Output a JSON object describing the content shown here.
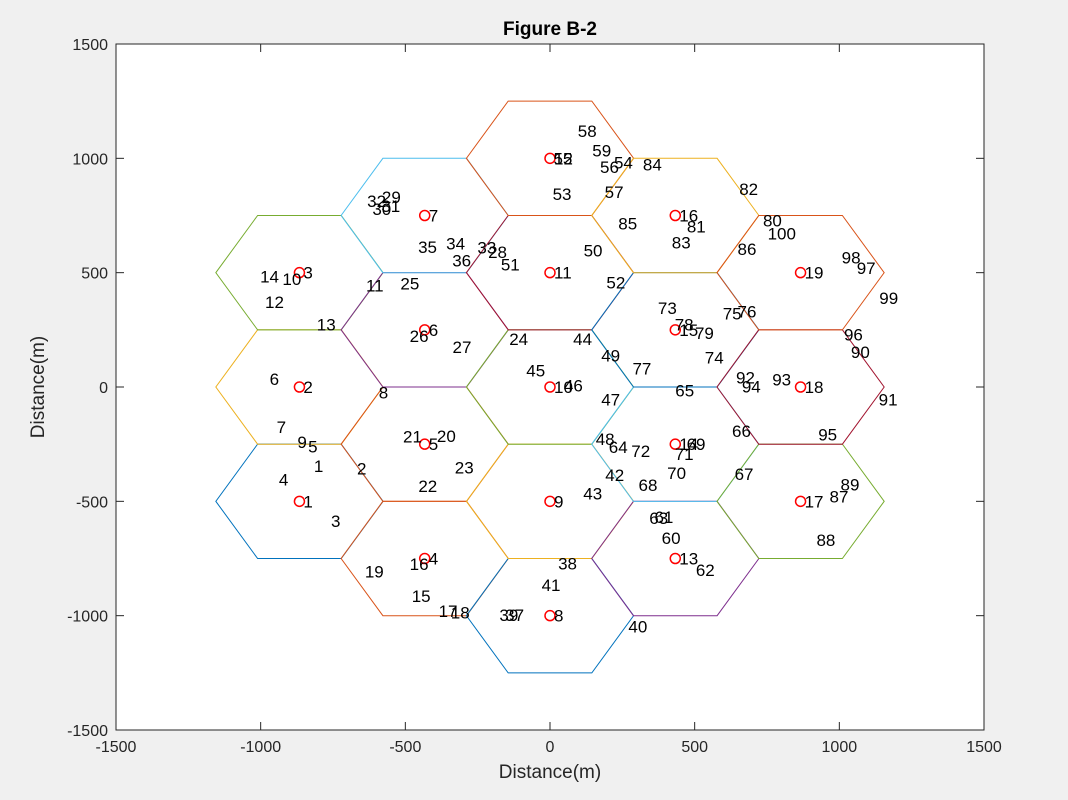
{
  "chart_data": {
    "type": "scatter",
    "title": "Figure B-2",
    "xlabel": "Distance(m)",
    "ylabel": "Distance(m)",
    "xlim": [
      -1500,
      1500
    ],
    "ylim": [
      -1500,
      1500
    ],
    "xticks": [
      -1500,
      -1000,
      -500,
      0,
      500,
      1000,
      1500
    ],
    "yticks": [
      -1500,
      -1000,
      -500,
      0,
      500,
      1000,
      1500
    ],
    "grid": false,
    "hexagon_radius": 289,
    "cells": [
      {
        "x": -866,
        "y": -500,
        "color": "#0072bd"
      },
      {
        "x": -866,
        "y": 0,
        "color": "#edb120"
      },
      {
        "x": -866,
        "y": 500,
        "color": "#77ac30"
      },
      {
        "x": -433,
        "y": -750,
        "color": "#d95319"
      },
      {
        "x": -433,
        "y": -250,
        "color": "#d95319"
      },
      {
        "x": -433,
        "y": 250,
        "color": "#7e2f8e"
      },
      {
        "x": -433,
        "y": 750,
        "color": "#4dbeee"
      },
      {
        "x": 0,
        "y": -1000,
        "color": "#0072bd"
      },
      {
        "x": 0,
        "y": -500,
        "color": "#edb120"
      },
      {
        "x": 0,
        "y": 0,
        "color": "#77ac30"
      },
      {
        "x": 0,
        "y": 500,
        "color": "#a2142f"
      },
      {
        "x": 0,
        "y": 1000,
        "color": "#d95319"
      },
      {
        "x": 433,
        "y": -750,
        "color": "#7e2f8e"
      },
      {
        "x": 433,
        "y": -250,
        "color": "#4dbeee"
      },
      {
        "x": 433,
        "y": 250,
        "color": "#0072bd"
      },
      {
        "x": 433,
        "y": 750,
        "color": "#edb120"
      },
      {
        "x": 866,
        "y": -500,
        "color": "#77ac30"
      },
      {
        "x": 866,
        "y": 0,
        "color": "#a2142f"
      },
      {
        "x": 866,
        "y": 500,
        "color": "#d95319"
      }
    ],
    "base_stations": [
      {
        "label": "1",
        "x": -866,
        "y": -500
      },
      {
        "label": "2",
        "x": -866,
        "y": 0
      },
      {
        "label": "3",
        "x": -866,
        "y": 500
      },
      {
        "label": "4",
        "x": -433,
        "y": -750
      },
      {
        "label": "5",
        "x": -433,
        "y": -250
      },
      {
        "label": "6",
        "x": -433,
        "y": 250
      },
      {
        "label": "7",
        "x": -433,
        "y": 750
      },
      {
        "label": "8",
        "x": 0,
        "y": -1000
      },
      {
        "label": "9",
        "x": 0,
        "y": -500
      },
      {
        "label": "10",
        "x": 0,
        "y": 0
      },
      {
        "label": "11",
        "x": 0,
        "y": 500
      },
      {
        "label": "12",
        "x": 0,
        "y": 1000
      },
      {
        "label": "13",
        "x": 433,
        "y": -750
      },
      {
        "label": "14",
        "x": 433,
        "y": -250
      },
      {
        "label": "15",
        "x": 433,
        "y": 250
      },
      {
        "label": "16",
        "x": 433,
        "y": 750
      },
      {
        "label": "17",
        "x": 866,
        "y": -500
      },
      {
        "label": "18",
        "x": 866,
        "y": 0
      },
      {
        "label": "19",
        "x": 866,
        "y": 500
      }
    ],
    "users": [
      {
        "label": "1",
        "x": -816,
        "y": -346
      },
      {
        "label": "2",
        "x": -667,
        "y": -356
      },
      {
        "label": "3",
        "x": -757,
        "y": -587
      },
      {
        "label": "4",
        "x": -937,
        "y": -405
      },
      {
        "label": "5",
        "x": -836,
        "y": -261
      },
      {
        "label": "6",
        "x": -969,
        "y": 35
      },
      {
        "label": "7",
        "x": -945,
        "y": -175
      },
      {
        "label": "8",
        "x": -592,
        "y": -24
      },
      {
        "label": "9",
        "x": -873,
        "y": -240
      },
      {
        "label": "10",
        "x": -925,
        "y": 473
      },
      {
        "label": "11",
        "x": -636,
        "y": 444
      },
      {
        "label": "12",
        "x": -985,
        "y": 372
      },
      {
        "label": "13",
        "x": -806,
        "y": 273
      },
      {
        "label": "14",
        "x": -1002,
        "y": 483
      },
      {
        "label": "15",
        "x": -478,
        "y": -914
      },
      {
        "label": "16",
        "x": -485,
        "y": -774
      },
      {
        "label": "17",
        "x": -385,
        "y": -979
      },
      {
        "label": "18",
        "x": -343,
        "y": -987
      },
      {
        "label": "19",
        "x": -640,
        "y": -807
      },
      {
        "label": "20",
        "x": -391,
        "y": -215
      },
      {
        "label": "21",
        "x": -508,
        "y": -217
      },
      {
        "label": "22",
        "x": -455,
        "y": -433
      },
      {
        "label": "23",
        "x": -329,
        "y": -352
      },
      {
        "label": "24",
        "x": -141,
        "y": 209
      },
      {
        "label": "25",
        "x": -517,
        "y": 453
      },
      {
        "label": "26",
        "x": -485,
        "y": 223
      },
      {
        "label": "27",
        "x": -337,
        "y": 174
      },
      {
        "label": "28",
        "x": -214,
        "y": 590
      },
      {
        "label": "29",
        "x": -581,
        "y": 830
      },
      {
        "label": "30",
        "x": -614,
        "y": 779
      },
      {
        "label": "31",
        "x": -583,
        "y": 792
      },
      {
        "label": "32",
        "x": -632,
        "y": 814
      },
      {
        "label": "33",
        "x": -251,
        "y": 610
      },
      {
        "label": "34",
        "x": -359,
        "y": 628
      },
      {
        "label": "35",
        "x": -456,
        "y": 612
      },
      {
        "label": "36",
        "x": -338,
        "y": 554
      },
      {
        "label": "37",
        "x": -155,
        "y": -997
      },
      {
        "label": "38",
        "x": 28,
        "y": -771
      },
      {
        "label": "39",
        "x": -175,
        "y": -997
      },
      {
        "label": "40",
        "x": 271,
        "y": -1048
      },
      {
        "label": "41",
        "x": -29,
        "y": -865
      },
      {
        "label": "42",
        "x": 191,
        "y": -385
      },
      {
        "label": "43",
        "x": 115,
        "y": -466
      },
      {
        "label": "44",
        "x": 80,
        "y": 209
      },
      {
        "label": "45",
        "x": -82,
        "y": 73
      },
      {
        "label": "46",
        "x": 48,
        "y": 7
      },
      {
        "label": "47",
        "x": 177,
        "y": -55
      },
      {
        "label": "48",
        "x": 158,
        "y": -228
      },
      {
        "label": "49",
        "x": 177,
        "y": 137
      },
      {
        "label": "50",
        "x": 116,
        "y": 598
      },
      {
        "label": "51",
        "x": -170,
        "y": 536
      },
      {
        "label": "52",
        "x": 195,
        "y": 456
      },
      {
        "label": "53",
        "x": 9,
        "y": 845
      },
      {
        "label": "54",
        "x": 221,
        "y": 981
      },
      {
        "label": "55",
        "x": 12,
        "y": 1000
      },
      {
        "label": "56",
        "x": 173,
        "y": 962
      },
      {
        "label": "57",
        "x": 189,
        "y": 853
      },
      {
        "label": "58",
        "x": 96,
        "y": 1120
      },
      {
        "label": "59",
        "x": 146,
        "y": 1034
      },
      {
        "label": "60",
        "x": 386,
        "y": -661
      },
      {
        "label": "61",
        "x": 361,
        "y": -569
      },
      {
        "label": "62",
        "x": 504,
        "y": -801
      },
      {
        "label": "63",
        "x": 343,
        "y": -573
      },
      {
        "label": "64",
        "x": 203,
        "y": -263
      },
      {
        "label": "65",
        "x": 433,
        "y": -16
      },
      {
        "label": "66",
        "x": 629,
        "y": -193
      },
      {
        "label": "67",
        "x": 638,
        "y": -380
      },
      {
        "label": "68",
        "x": 306,
        "y": -429
      },
      {
        "label": "69",
        "x": 472,
        "y": -250
      },
      {
        "label": "70",
        "x": 405,
        "y": -376
      },
      {
        "label": "71",
        "x": 431,
        "y": -293
      },
      {
        "label": "72",
        "x": 281,
        "y": -280
      },
      {
        "label": "73",
        "x": 373,
        "y": 345
      },
      {
        "label": "74",
        "x": 535,
        "y": 129
      },
      {
        "label": "75",
        "x": 597,
        "y": 322
      },
      {
        "label": "76",
        "x": 648,
        "y": 331
      },
      {
        "label": "77",
        "x": 285,
        "y": 81
      },
      {
        "label": "78",
        "x": 431,
        "y": 273
      },
      {
        "label": "79",
        "x": 501,
        "y": 236
      },
      {
        "label": "80",
        "x": 736,
        "y": 728
      },
      {
        "label": "81",
        "x": 473,
        "y": 701
      },
      {
        "label": "82",
        "x": 654,
        "y": 865
      },
      {
        "label": "83",
        "x": 421,
        "y": 633
      },
      {
        "label": "84",
        "x": 321,
        "y": 973
      },
      {
        "label": "85",
        "x": 236,
        "y": 715
      },
      {
        "label": "86",
        "x": 648,
        "y": 604
      },
      {
        "label": "87",
        "x": 966,
        "y": -479
      },
      {
        "label": "88",
        "x": 921,
        "y": -669
      },
      {
        "label": "89",
        "x": 1004,
        "y": -427
      },
      {
        "label": "90",
        "x": 1040,
        "y": 153
      },
      {
        "label": "91",
        "x": 1136,
        "y": -55
      },
      {
        "label": "92",
        "x": 643,
        "y": 42
      },
      {
        "label": "93",
        "x": 768,
        "y": 33
      },
      {
        "label": "94",
        "x": 663,
        "y": 3
      },
      {
        "label": "95",
        "x": 927,
        "y": -208
      },
      {
        "label": "96",
        "x": 1016,
        "y": 229
      },
      {
        "label": "97",
        "x": 1060,
        "y": 521
      },
      {
        "label": "98",
        "x": 1008,
        "y": 567
      },
      {
        "label": "99",
        "x": 1138,
        "y": 389
      },
      {
        "label": "100",
        "x": 752,
        "y": 672
      }
    ]
  }
}
